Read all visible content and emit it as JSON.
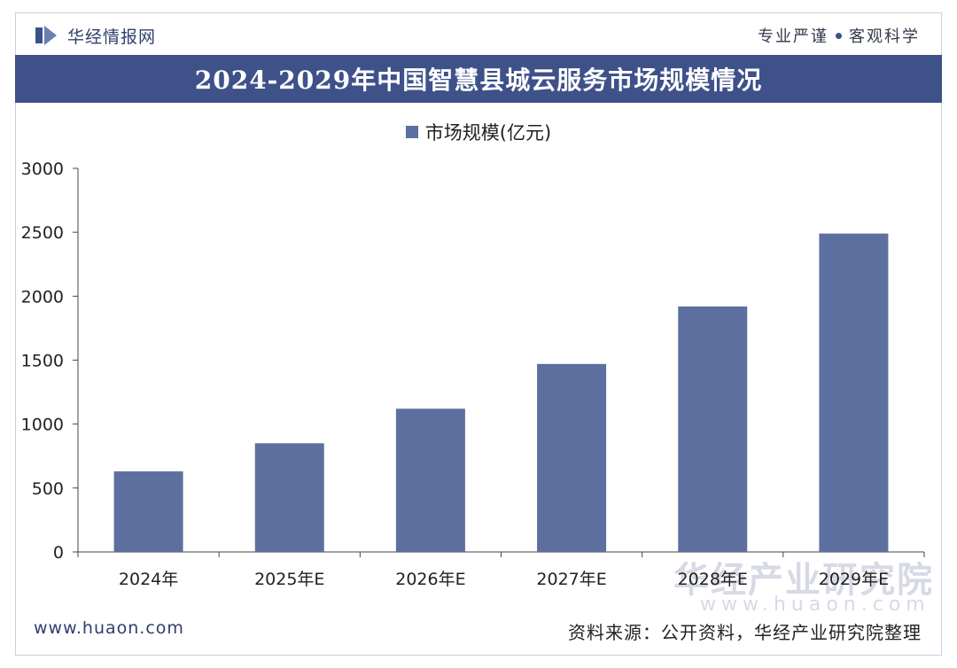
{
  "header": {
    "brand_name": "华经情报网",
    "slogan_left": "专业严谨",
    "slogan_right": "客观科学"
  },
  "watermark": {
    "text": "华经产业研究院",
    "url": "www.huaon.com"
  },
  "footer": {
    "website": "www.huaon.com",
    "source": "资料来源：公开资料，华经产业研究院整理"
  },
  "colors": {
    "bar": "#5d6f9e",
    "title_bg": "#3f5189",
    "axis": "#444444"
  },
  "chart_data": {
    "type": "bar",
    "title": "2024-2029年中国智慧县城云服务市场规模情况",
    "categories": [
      "2024年",
      "2025年E",
      "2026年E",
      "2027年E",
      "2028年E",
      "2029年E"
    ],
    "series": [
      {
        "name": "市场规模(亿元)",
        "values": [
          630,
          850,
          1120,
          1470,
          1920,
          2490
        ]
      }
    ],
    "ylim": [
      0,
      3000
    ],
    "yticks": [
      0,
      500,
      1000,
      1500,
      2000,
      2500,
      3000
    ],
    "grid": false,
    "legend": "top-center"
  }
}
